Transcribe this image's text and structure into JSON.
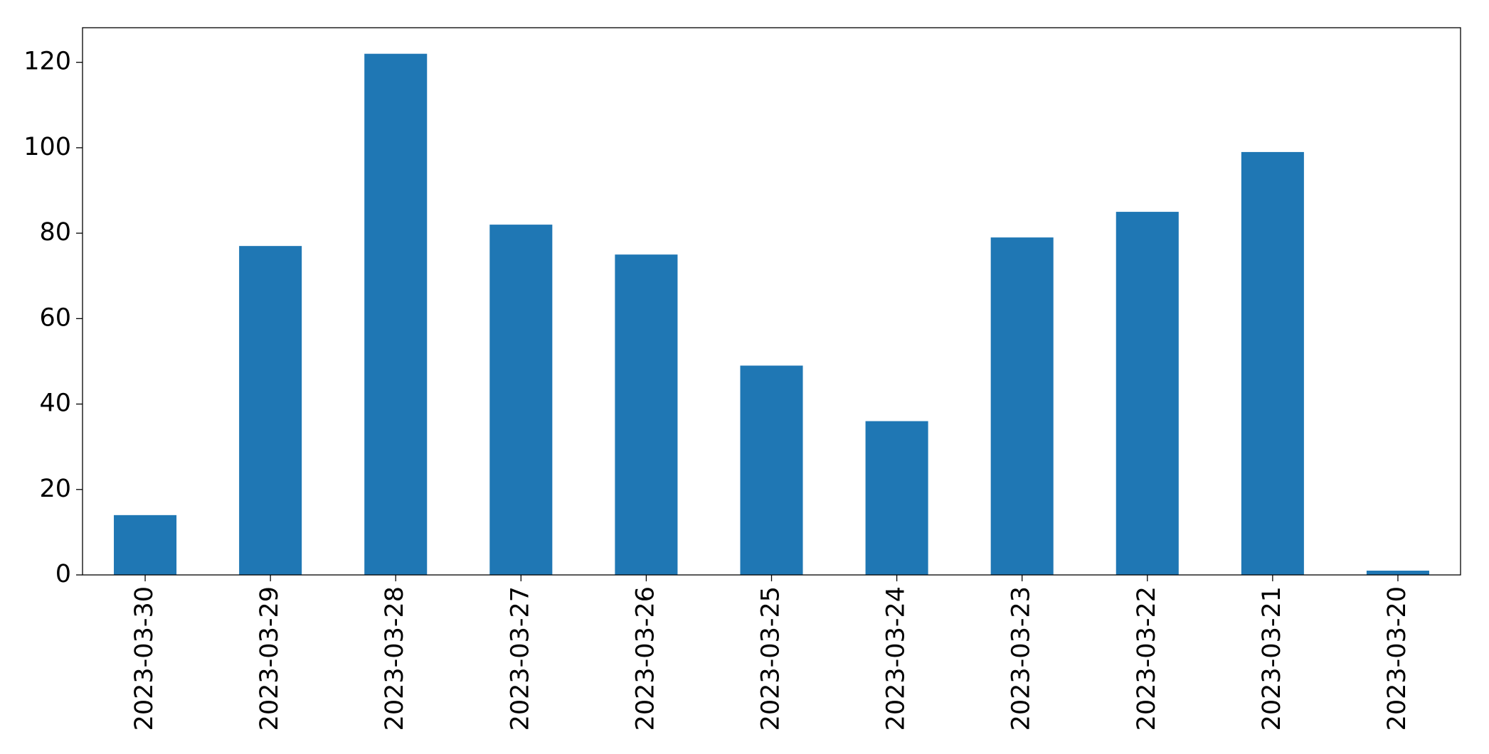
{
  "chart_data": {
    "type": "bar",
    "categories": [
      "2023-03-30",
      "2023-03-29",
      "2023-03-28",
      "2023-03-27",
      "2023-03-26",
      "2023-03-25",
      "2023-03-24",
      "2023-03-23",
      "2023-03-22",
      "2023-03-21",
      "2023-03-20"
    ],
    "values": [
      14,
      77,
      122,
      82,
      75,
      49,
      36,
      79,
      85,
      99,
      1
    ],
    "color": "#1f77b4",
    "ylim": [
      0,
      128.1
    ],
    "yticks": [
      0,
      20,
      40,
      60,
      80,
      100,
      120
    ],
    "grid": false
  }
}
